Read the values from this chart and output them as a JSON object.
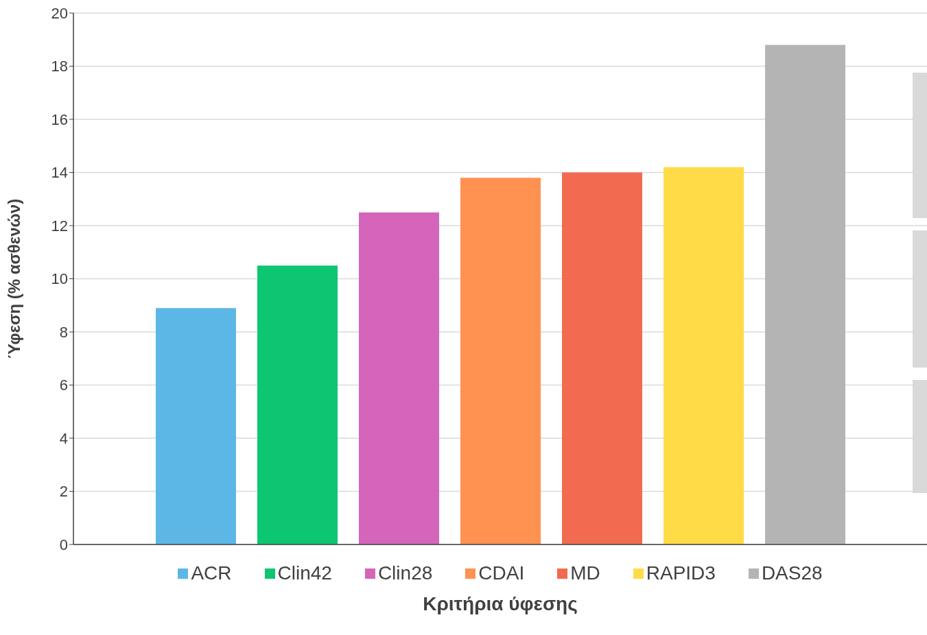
{
  "chart_data": {
    "type": "bar",
    "xlabel": "Κριτήρια ύφεσης",
    "ylabel": "Ύφεση (% ασθενών)",
    "categories": [
      null
    ],
    "series": [
      {
        "name": "ACR",
        "color": "#5db7e6",
        "values": [
          8.9
        ]
      },
      {
        "name": "Clin42",
        "color": "#0cc672",
        "values": [
          10.5
        ]
      },
      {
        "name": "Clin28",
        "color": "#d465ba",
        "values": [
          12.5
        ]
      },
      {
        "name": "CDAI",
        "color": "#ff9151",
        "values": [
          13.8
        ]
      },
      {
        "name": "MD",
        "color": "#f26b50",
        "values": [
          14.0
        ]
      },
      {
        "name": "RAPID3",
        "color": "#ffdb47",
        "values": [
          14.2
        ]
      },
      {
        "name": "DAS28",
        "color": "#b4b4b4",
        "values": [
          18.8
        ]
      }
    ],
    "ylim": [
      0,
      20
    ],
    "yticks": [
      0,
      2,
      4,
      6,
      8,
      10,
      12,
      14,
      16,
      18,
      20
    ],
    "grid": "y",
    "legend": "bottom"
  }
}
